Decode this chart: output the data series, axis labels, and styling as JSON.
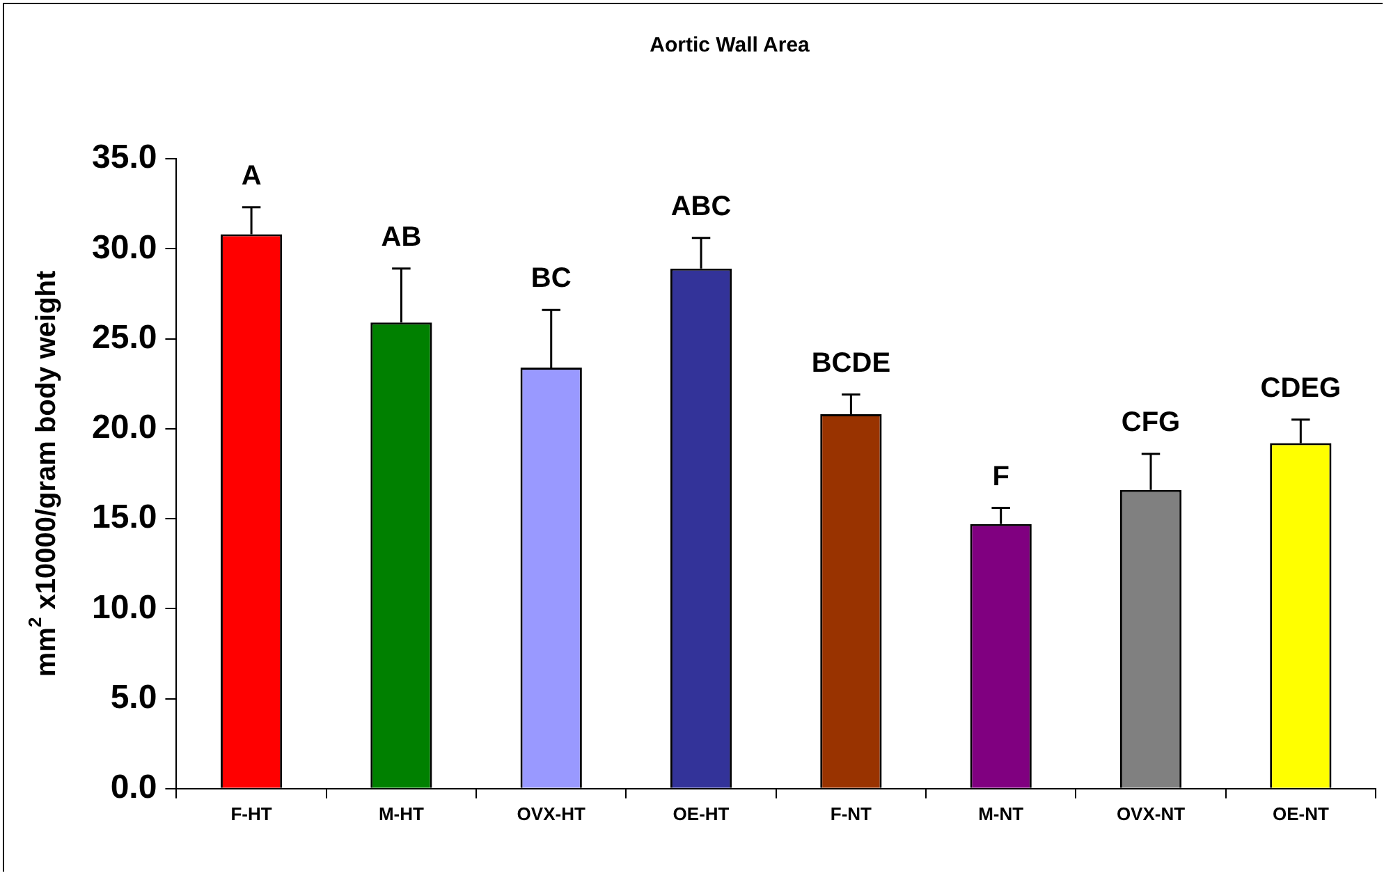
{
  "chart_data": {
    "type": "bar",
    "title": "Aortic Wall Area",
    "ylabel": "mm$^{2}$ x10000/gram body weight",
    "categories": [
      "F-HT",
      "M-HT",
      "OVX-HT",
      "OE-HT",
      "F-NT",
      "M-NT",
      "OVX-NT",
      "OE-NT"
    ],
    "values": [
      30.8,
      25.9,
      23.4,
      28.9,
      20.8,
      14.7,
      16.6,
      19.2
    ],
    "errors": [
      [
        30.8,
        32.3
      ],
      [
        25.9,
        28.9
      ],
      [
        23.4,
        26.6
      ],
      [
        28.9,
        30.6
      ],
      [
        20.8,
        21.9
      ],
      [
        14.7,
        15.6
      ],
      [
        16.6,
        18.6
      ],
      [
        19.2,
        20.5
      ]
    ],
    "colors": [
      "#ff0000",
      "#008000",
      "#9999ff",
      "#333399",
      "#993300",
      "#800080",
      "#808080",
      "#ffff00"
    ],
    "ylim": [
      0,
      35
    ],
    "yticks": [
      {
        "value": 0,
        "label": "0.0"
      },
      {
        "value": 5,
        "label": "5.0"
      },
      {
        "value": 10,
        "label": "10.0"
      },
      {
        "value": 15,
        "label": "15.0"
      },
      {
        "value": 20,
        "label": "20.0"
      },
      {
        "value": 25,
        "label": "25.0"
      },
      {
        "value": 30,
        "label": "30.0"
      },
      {
        "value": 35,
        "label": "35.0"
      }
    ],
    "annotations": [
      {
        "text": "A",
        "x": "F-HT",
        "y": 30.8
      },
      {
        "text": "AB",
        "x": "M-HT",
        "y": 25.9
      },
      {
        "text": "BC",
        "x": "OVX-HT",
        "y": 23.4
      },
      {
        "text": "ABC",
        "x": "OE-HT",
        "y": 28.9
      },
      {
        "text": "BCDE",
        "x": "F-NT",
        "y": 20.8
      },
      {
        "text": "F",
        "x": "M-NT",
        "y": 14.7
      },
      {
        "text": "CFG",
        "x": "OVX-NT",
        "y": 16.6
      },
      {
        "text": "CDEG",
        "x": "OE-NT",
        "y": 19.2
      }
    ],
    "grid": false,
    "legend": false
  }
}
